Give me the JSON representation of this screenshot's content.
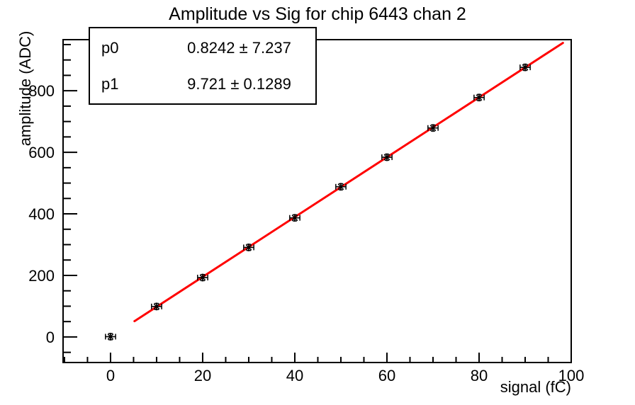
{
  "header": {
    "title": "Amplitude vs Sig for chip 6443 chan 2"
  },
  "stats_box": {
    "rows": [
      {
        "label": "p0",
        "value": "0.8242 ± 7.237"
      },
      {
        "label": "p1",
        "value": "9.721 ± 0.1289"
      }
    ]
  },
  "chart_data": {
    "type": "scatter",
    "title": "Amplitude vs Sig for chip 6443 chan 2",
    "xlabel": "signal (fC)",
    "ylabel": "amplitude (ADC)",
    "xlim": [
      -10.3,
      100
    ],
    "ylim": [
      -83,
      966
    ],
    "x_major_ticks": [
      0,
      20,
      40,
      60,
      80,
      100
    ],
    "y_major_ticks": [
      0,
      200,
      400,
      600,
      800
    ],
    "x_minor_step": 5,
    "y_minor_step": 50,
    "grid": false,
    "legend": "none",
    "series": [
      {
        "name": "data",
        "marker": "asterisk",
        "color": "#000000",
        "x": [
          0,
          10,
          20,
          30,
          40,
          50,
          60,
          70,
          80,
          90
        ],
        "y": [
          1,
          99,
          193,
          291,
          387,
          488,
          584,
          679,
          778,
          876
        ],
        "x_err": 1.1,
        "y_err": 10
      }
    ],
    "fit": {
      "name": "linear-fit",
      "color": "#ff0000",
      "p0": 0.8242,
      "p1": 9.721,
      "x_start": 5.2,
      "x_end": 98.2
    }
  },
  "colors": {
    "axis": "#000000",
    "text": "#000000",
    "fit_line": "#ff0000",
    "background": "#ffffff",
    "stats_border": "#000000",
    "stats_background": "#ffffff"
  }
}
